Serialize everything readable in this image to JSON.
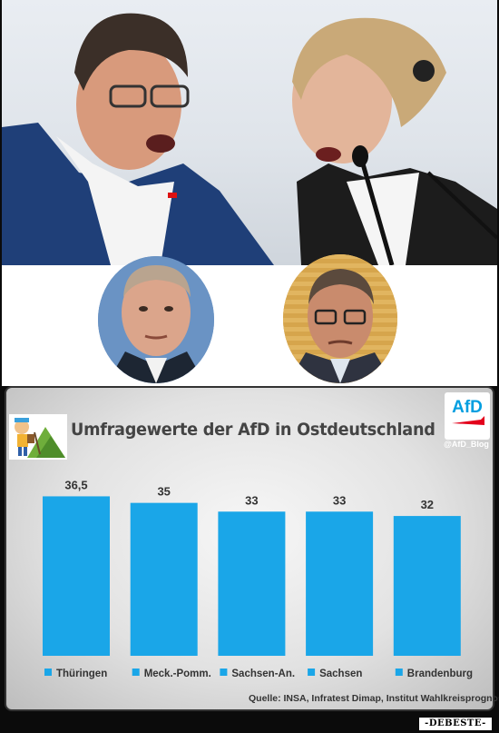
{
  "chart_data": {
    "type": "bar",
    "title": "Umfragewerte der AfD in Ostdeutschland",
    "categories": [
      "Thüringen",
      "Meck.-Pomm.",
      "Sachsen-An.",
      "Sachsen",
      "Brandenburg"
    ],
    "values": [
      36.5,
      35,
      33,
      33,
      32
    ],
    "value_labels": [
      "36,5",
      "35",
      "33",
      "33",
      "32"
    ],
    "legend_placement": "bottom",
    "grid": false,
    "bar_color": "#1aa6e8",
    "source": "Quelle: INSA, Infratest Dimap, Institut Wahlkreisprognose"
  },
  "logo": {
    "text": "AfD",
    "sub": "Blog",
    "handle": "@AfD_Blog",
    "color": "#009ee0"
  },
  "watermark": "-DEBESTE-"
}
